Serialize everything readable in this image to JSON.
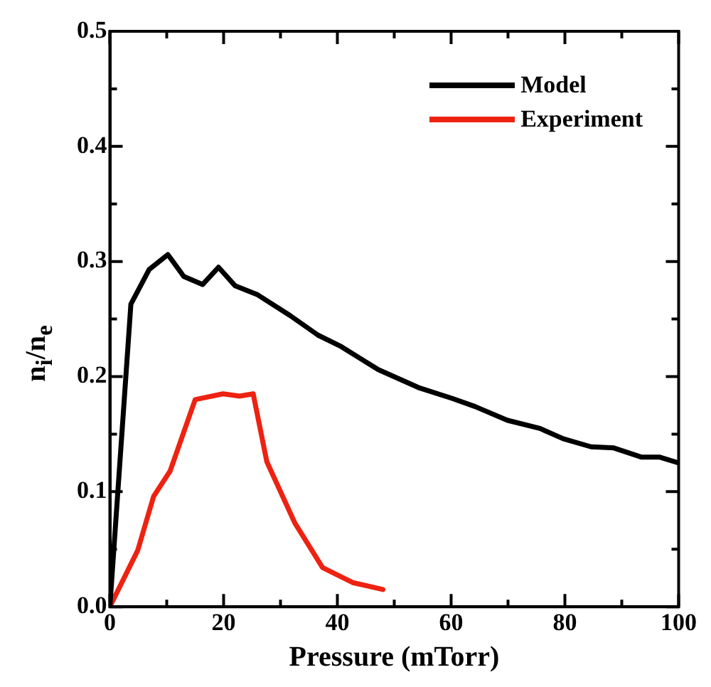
{
  "chart_data": {
    "type": "line",
    "xlabel": "Pressure (mTorr)",
    "ylabel": "n$_{i}$/n$_{e}$",
    "xlim": [
      0,
      100
    ],
    "ylim": [
      0,
      0.5
    ],
    "xticks": [
      0,
      {
        "value": 10,
        "label": null
      },
      20,
      {
        "value": 30,
        "label": null
      },
      40,
      {
        "value": 50,
        "label": null
      },
      60,
      {
        "value": 70,
        "label": null
      },
      80,
      {
        "value": 90,
        "label": null
      },
      100
    ],
    "yticks": [
      {
        "value": 0,
        "label": "0.0"
      },
      {
        "value": 0.05,
        "label": null
      },
      0.1,
      {
        "value": 0.15,
        "label": null
      },
      0.2,
      {
        "value": 0.25,
        "label": null
      },
      0.3,
      {
        "value": 0.35,
        "label": null
      },
      0.4,
      {
        "value": 0.45,
        "label": null
      },
      0.5
    ],
    "grid": false,
    "legend": "top right",
    "marker": "none",
    "line_style": "solid",
    "series": [
      {
        "name": "Model",
        "color": "#000000",
        "x": [
          0,
          3.7,
          6.9,
          10.2,
          13,
          16.3,
          19.1,
          22,
          26,
          31.7,
          36.6,
          40.7,
          47.2,
          54.5,
          60.2,
          64.2,
          69.9,
          75.6,
          79.7,
          84.6,
          88.6,
          93.5,
          96.7,
          100
        ],
        "values": [
          0,
          0.263,
          0.293,
          0.306,
          0.287,
          0.28,
          0.295,
          0.279,
          0.271,
          0.253,
          0.236,
          0.226,
          0.206,
          0.19,
          0.181,
          0.174,
          0.162,
          0.155,
          0.146,
          0.139,
          0.138,
          0.13,
          0.13,
          0.125
        ]
      },
      {
        "name": "Experiment",
        "color": "#ee2211",
        "x": [
          0,
          4.9,
          7.7,
          10.6,
          15,
          19.9,
          22.8,
          25.2,
          27.6,
          32.5,
          37.4,
          42.7,
          48
        ],
        "values": [
          0,
          0.049,
          0.096,
          0.118,
          0.18,
          0.185,
          0.183,
          0.185,
          0.126,
          0.073,
          0.034,
          0.021,
          0.015
        ]
      }
    ]
  }
}
